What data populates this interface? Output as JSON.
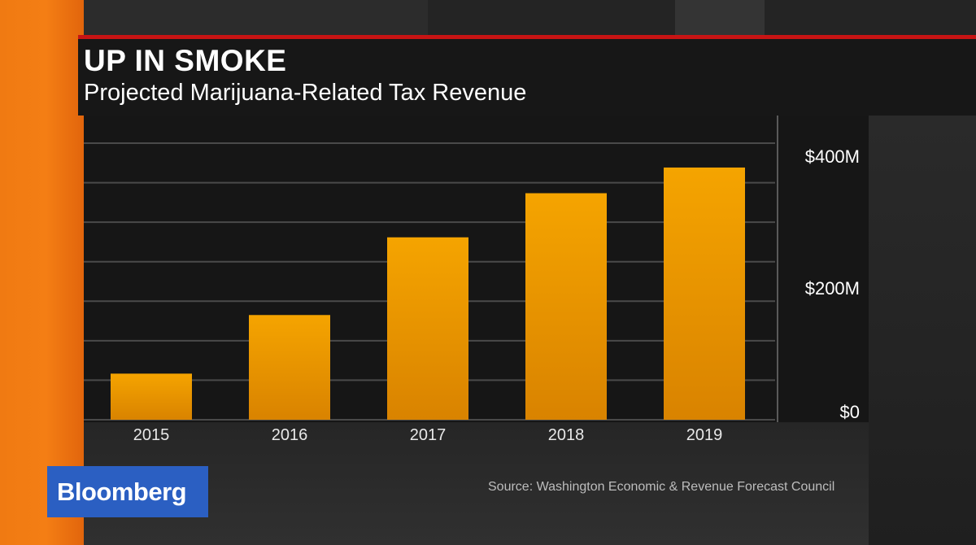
{
  "title": "UP IN SMOKE",
  "subtitle": "Projected Marijuana-Related Tax Revenue",
  "source": "Source: Washington Economic & Revenue Forecast Council",
  "brand": {
    "name": "Bloomberg",
    "color": "#2b5fc2"
  },
  "colors": {
    "accent_red": "#c81414",
    "bar_top": "#f5a400",
    "bar_bottom": "#d98300",
    "orange_panel": "#f47e14",
    "grid": "#4a4a4a",
    "text": "#ffffff"
  },
  "chart_data": {
    "type": "bar",
    "title": "UP IN SMOKE",
    "subtitle": "Projected Marijuana-Related Tax Revenue",
    "categories": [
      "2015",
      "2016",
      "2017",
      "2018",
      "2019"
    ],
    "values": [
      70,
      159,
      277,
      344,
      383
    ],
    "unit": "$M",
    "xlabel": "",
    "ylabel": "",
    "ylim": [
      0,
      420
    ],
    "yticks": [
      {
        "value": 0,
        "label": "$0"
      },
      {
        "value": 200,
        "label": "$200M"
      },
      {
        "value": 400,
        "label": "$400M"
      }
    ],
    "gridlines": [
      0,
      60,
      120,
      180,
      240,
      300,
      360,
      420
    ],
    "y_axis_side": "right",
    "grid": true,
    "legend": "none"
  }
}
